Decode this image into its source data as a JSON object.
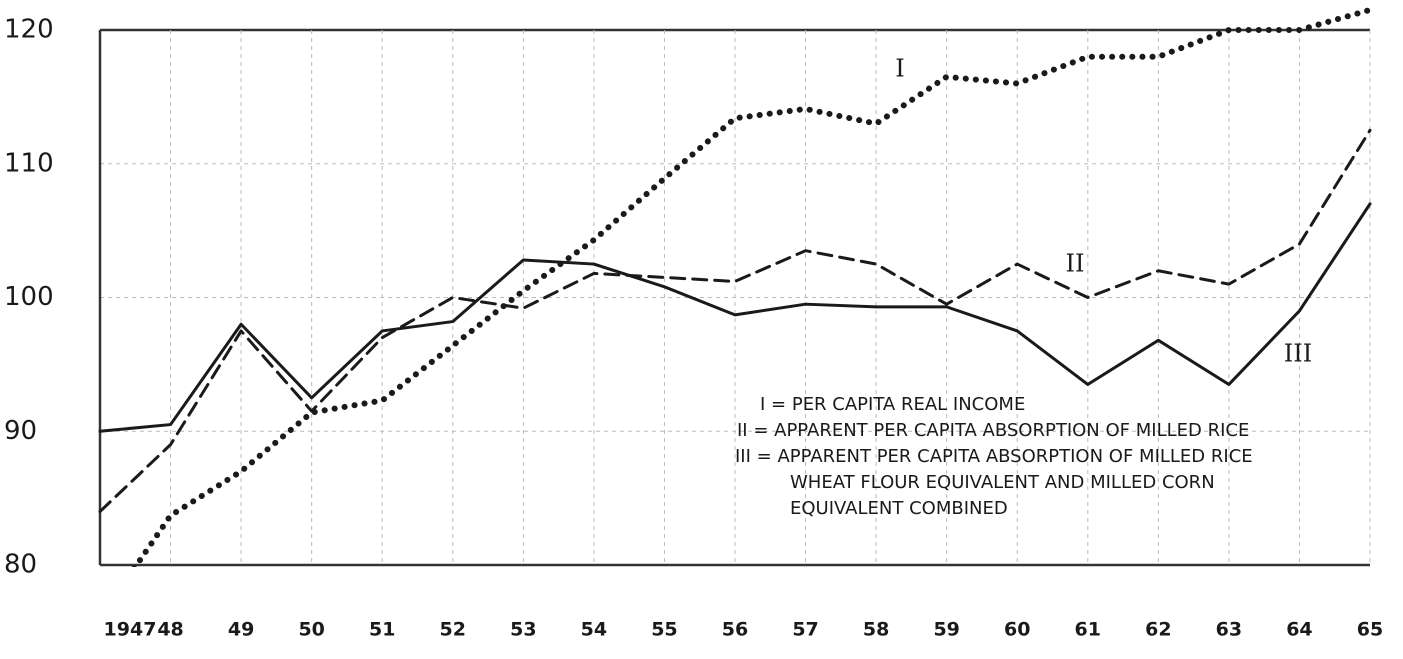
{
  "chart_data": {
    "type": "line",
    "categories": [
      "1947",
      "48",
      "49",
      "50",
      "51",
      "52",
      "53",
      "54",
      "55",
      "56",
      "57",
      "58",
      "59",
      "60",
      "61",
      "62",
      "63",
      "64",
      "65"
    ],
    "series": [
      {
        "name": "I",
        "color": "#1a1a1a",
        "style": "dotted",
        "values": [
          76,
          83.7,
          87,
          91.4,
          92.3,
          96.4,
          100.5,
          104.3,
          108.9,
          113.4,
          114.1,
          113,
          116.5,
          116,
          118,
          118,
          120,
          120,
          121.5
        ]
      },
      {
        "name": "II",
        "color": "#1a1a1a",
        "style": "dashed",
        "values": [
          84,
          89,
          97.5,
          91.5,
          97,
          100,
          99.2,
          101.8,
          101.5,
          101.2,
          103.5,
          102.5,
          99.5,
          102.5,
          100,
          102,
          101,
          104,
          112.5
        ]
      },
      {
        "name": "III",
        "color": "#1a1a1a",
        "style": "solid",
        "values": [
          90,
          90.5,
          98,
          92.5,
          97.5,
          98.2,
          102.8,
          102.5,
          100.8,
          98.7,
          99.5,
          99.3,
          99.3,
          97.5,
          93.5,
          96.8,
          93.5,
          99,
          107
        ]
      }
    ],
    "legend_text": [
      "I = PER CAPITA REAL INCOME",
      "II = APPARENT PER CAPITA ABSORPTION OF MILLED RICE",
      "III = APPARENT PER CAPITA ABSORPTION OF MILLED RICE",
      "WHEAT FLOUR EQUIVALENT AND MILLED CORN",
      "EQUIVALENT COMBINED"
    ],
    "ylim": [
      80,
      120
    ],
    "yticks": [
      80,
      90,
      100,
      110,
      120
    ],
    "grid": true
  }
}
